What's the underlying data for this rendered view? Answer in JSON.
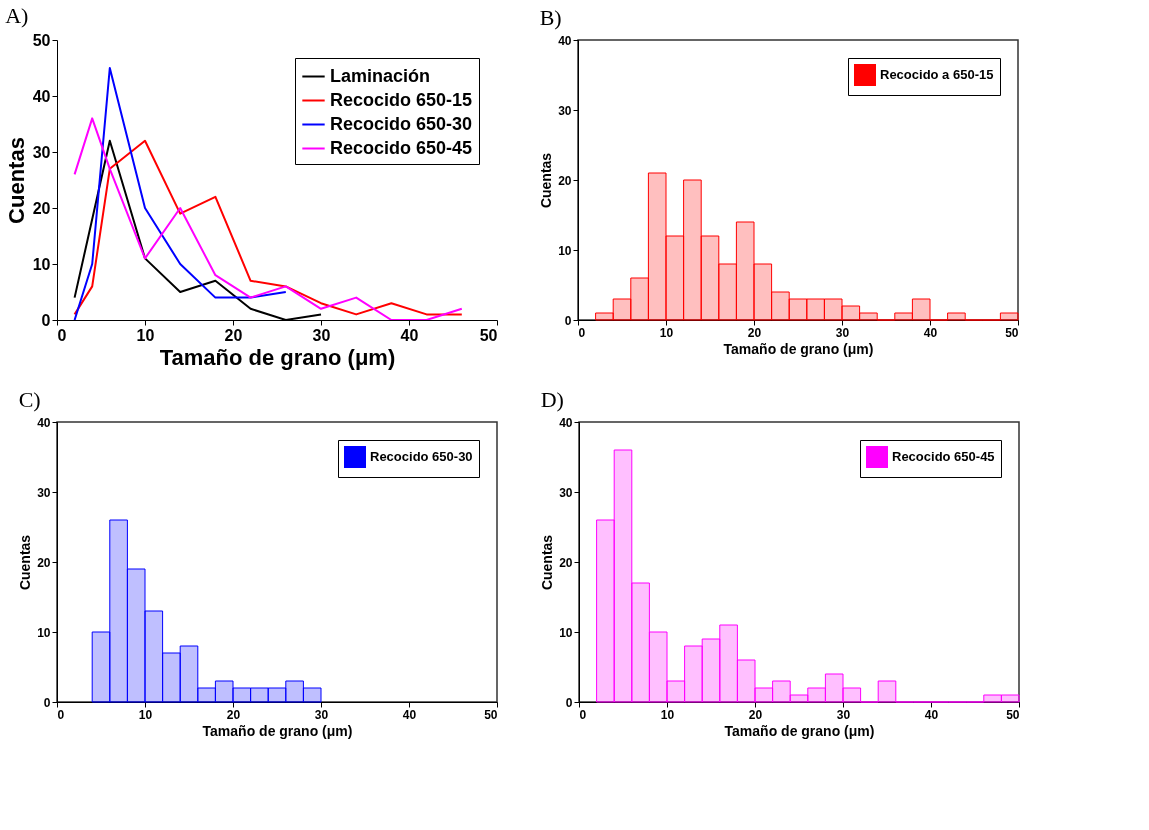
{
  "chart_data": [
    {
      "type": "line",
      "title": "A)",
      "xlabel": "Tamaño de grano (μm)",
      "ylabel": "Cuentas",
      "xlim": [
        0,
        50
      ],
      "ylim": [
        0,
        50
      ],
      "xticks": [
        0,
        10,
        20,
        30,
        40,
        50
      ],
      "yticks": [
        0,
        10,
        20,
        30,
        40,
        50
      ],
      "grid": false,
      "legend": "top right",
      "series": [
        {
          "name": "Laminación",
          "color": "#000000",
          "x": [
            2,
            6,
            10,
            14,
            18,
            22,
            26,
            30
          ],
          "values": [
            4,
            32,
            11,
            5,
            7,
            2,
            0,
            1
          ]
        },
        {
          "name": "Recocido 650-15",
          "color": "#ff0000",
          "x": [
            2,
            4,
            6,
            10,
            14,
            18,
            22,
            26,
            30,
            34,
            38,
            42,
            46
          ],
          "values": [
            1,
            6,
            27,
            32,
            19,
            22,
            7,
            6,
            3,
            1,
            3,
            1,
            1
          ]
        },
        {
          "name": "Recocido 650-30",
          "color": "#0000ff",
          "x": [
            2,
            4,
            6,
            10,
            14,
            18,
            22,
            26
          ],
          "values": [
            0,
            10,
            45,
            20,
            10,
            4,
            4,
            5
          ]
        },
        {
          "name": "Recocido 650-45",
          "color": "#ff00ff",
          "x": [
            2,
            4,
            6,
            10,
            14,
            18,
            22,
            26,
            30,
            34,
            38,
            42,
            46
          ],
          "values": [
            26,
            36,
            27,
            11,
            20,
            8,
            4,
            6,
            2,
            4,
            0,
            0,
            2
          ]
        }
      ]
    },
    {
      "type": "histogram",
      "title": "B)",
      "xlabel": "Tamaño de grano (μm)",
      "ylabel": "Cuentas",
      "xlim": [
        0,
        50
      ],
      "ylim": [
        0,
        40
      ],
      "xticks": [
        0,
        10,
        20,
        30,
        40,
        50
      ],
      "yticks": [
        0,
        10,
        20,
        30,
        40
      ],
      "grid": false,
      "legend": "top right",
      "bins": [
        2,
        4,
        6,
        8,
        10,
        12,
        14,
        16,
        18,
        20,
        22,
        24,
        26,
        28,
        30,
        32,
        34,
        36,
        38,
        40,
        42,
        44,
        46,
        48,
        50
      ],
      "series": [
        {
          "name": "Recocido a 650-15",
          "color": "#ff0000",
          "values": [
            1,
            3,
            6,
            21,
            12,
            20,
            12,
            8,
            14,
            8,
            4,
            3,
            3,
            3,
            2,
            1,
            0,
            1,
            3,
            0,
            1,
            0,
            0,
            1
          ]
        }
      ]
    },
    {
      "type": "histogram",
      "title": "C)",
      "xlabel": "Tamaño de grano (μm)",
      "ylabel": "Cuentas",
      "xlim": [
        0,
        50
      ],
      "ylim": [
        0,
        40
      ],
      "xticks": [
        0,
        10,
        20,
        30,
        40,
        50
      ],
      "yticks": [
        0,
        10,
        20,
        30,
        40
      ],
      "grid": false,
      "legend": "top right",
      "bins": [
        4,
        6,
        8,
        10,
        12,
        14,
        16,
        18,
        20,
        22,
        24,
        26,
        28,
        30
      ],
      "series": [
        {
          "name": "Recocido 650-30",
          "color": "#0000ff",
          "values": [
            10,
            26,
            19,
            13,
            7,
            8,
            2,
            3,
            2,
            2,
            2,
            3,
            2
          ]
        }
      ]
    },
    {
      "type": "histogram",
      "title": "D)",
      "xlabel": "Tamaño de grano (μm)",
      "ylabel": "Cuentas",
      "xlim": [
        0,
        50
      ],
      "ylim": [
        0,
        40
      ],
      "xticks": [
        0,
        10,
        20,
        30,
        40,
        50
      ],
      "yticks": [
        0,
        10,
        20,
        30,
        40
      ],
      "grid": false,
      "legend": "top right",
      "bins": [
        2,
        4,
        6,
        8,
        10,
        12,
        14,
        16,
        18,
        20,
        22,
        24,
        26,
        28,
        30,
        32,
        34,
        36,
        38,
        40,
        42,
        44,
        46,
        48,
        50
      ],
      "series": [
        {
          "name": "Recocido 650-45",
          "color": "#ff00ff",
          "values": [
            26,
            36,
            17,
            10,
            3,
            8,
            9,
            11,
            6,
            2,
            3,
            1,
            2,
            4,
            2,
            0,
            3,
            0,
            0,
            0,
            0,
            0,
            1,
            1
          ]
        }
      ]
    }
  ]
}
